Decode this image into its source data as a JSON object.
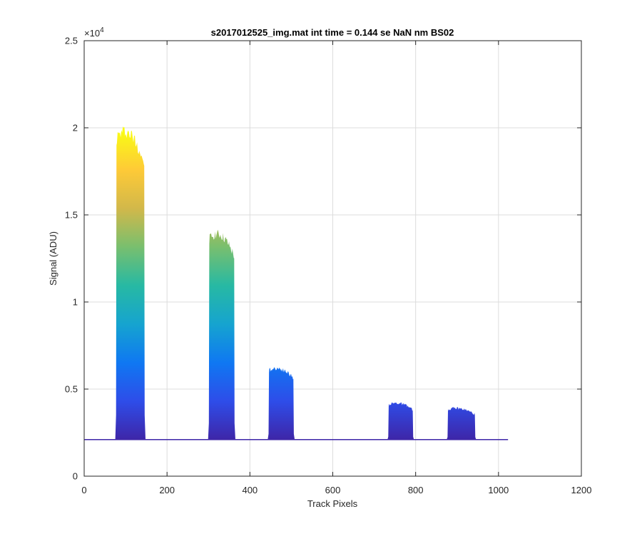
{
  "chart_data": {
    "type": "area",
    "title": "s2017012525_img.mat int time = 0.144 se  NaN nm BS02",
    "xlabel": "Track Pixels",
    "ylabel": "Signal (ADU)",
    "xlim": [
      0,
      1200
    ],
    "ylim": [
      0,
      25000
    ],
    "grid": true,
    "legend": "none",
    "y_exponent_label": "×10",
    "y_exponent_value": "4",
    "x_ticks": [
      {
        "value": 0,
        "label": "0"
      },
      {
        "value": 200,
        "label": "200"
      },
      {
        "value": 400,
        "label": "400"
      },
      {
        "value": 600,
        "label": "600"
      },
      {
        "value": 800,
        "label": "800"
      },
      {
        "value": 1000,
        "label": "1000"
      },
      {
        "value": 1200,
        "label": "1200"
      }
    ],
    "y_ticks": [
      {
        "value": 0,
        "label": "0"
      },
      {
        "value": 5000,
        "label": "0.5"
      },
      {
        "value": 10000,
        "label": "1"
      },
      {
        "value": 15000,
        "label": "1.5"
      },
      {
        "value": 20000,
        "label": "2"
      },
      {
        "value": 25000,
        "label": "2.5"
      }
    ],
    "baseline": 2100,
    "x_end": 1023,
    "peaks": [
      {
        "start": 78,
        "end": 145,
        "peak": 19800
      },
      {
        "start": 302,
        "end": 362,
        "peak": 13900
      },
      {
        "start": 446,
        "end": 505,
        "peak": 6200
      },
      {
        "start": 735,
        "end": 793,
        "peak": 4200
      },
      {
        "start": 878,
        "end": 943,
        "peak": 3900
      }
    ],
    "colormap": [
      "#3e26a8",
      "#2e4de9",
      "#0f78f2",
      "#16a4cf",
      "#27b9a3",
      "#79bf6e",
      "#d2b84a",
      "#feca37",
      "#f9fb15"
    ]
  }
}
